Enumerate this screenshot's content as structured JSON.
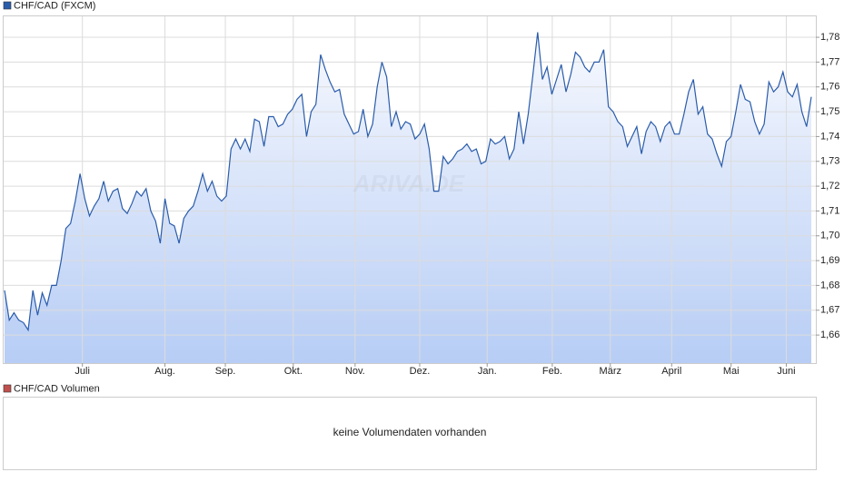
{
  "chart_data": {
    "type": "area",
    "title": "CHF/CAD (FXCM)",
    "watermark": "ARIVA.DE",
    "color": "#2a5caa",
    "values": [
      1.678,
      1.666,
      1.669,
      1.666,
      1.665,
      1.662,
      1.678,
      1.668,
      1.677,
      1.672,
      1.68,
      1.68,
      1.69,
      1.703,
      1.705,
      1.714,
      1.725,
      1.715,
      1.708,
      1.712,
      1.715,
      1.722,
      1.714,
      1.718,
      1.719,
      1.711,
      1.709,
      1.713,
      1.718,
      1.716,
      1.719,
      1.71,
      1.706,
      1.697,
      1.715,
      1.705,
      1.704,
      1.697,
      1.707,
      1.71,
      1.712,
      1.718,
      1.725,
      1.718,
      1.722,
      1.716,
      1.714,
      1.716,
      1.735,
      1.739,
      1.735,
      1.739,
      1.734,
      1.747,
      1.746,
      1.736,
      1.748,
      1.748,
      1.744,
      1.745,
      1.749,
      1.751,
      1.755,
      1.757,
      1.74,
      1.75,
      1.753,
      1.773,
      1.767,
      1.762,
      1.758,
      1.759,
      1.749,
      1.745,
      1.741,
      1.742,
      1.751,
      1.74,
      1.745,
      1.76,
      1.77,
      1.764,
      1.744,
      1.75,
      1.743,
      1.746,
      1.745,
      1.739,
      1.741,
      1.745,
      1.735,
      1.718,
      1.718,
      1.732,
      1.729,
      1.731,
      1.734,
      1.735,
      1.737,
      1.734,
      1.735,
      1.729,
      1.73,
      1.739,
      1.737,
      1.738,
      1.74,
      1.731,
      1.735,
      1.75,
      1.737,
      1.749,
      1.765,
      1.782,
      1.763,
      1.768,
      1.757,
      1.763,
      1.769,
      1.758,
      1.765,
      1.774,
      1.772,
      1.768,
      1.766,
      1.77,
      1.77,
      1.775,
      1.752,
      1.75,
      1.746,
      1.744,
      1.736,
      1.74,
      1.744,
      1.733,
      1.742,
      1.746,
      1.744,
      1.738,
      1.744,
      1.746,
      1.741,
      1.741,
      1.749,
      1.758,
      1.763,
      1.749,
      1.752,
      1.741,
      1.739,
      1.733,
      1.728,
      1.738,
      1.74,
      1.75,
      1.761,
      1.755,
      1.754,
      1.746,
      1.741,
      1.745,
      1.762,
      1.758,
      1.76,
      1.766,
      1.758,
      1.756,
      1.761,
      1.75,
      1.744,
      1.756
    ],
    "xlim": [
      0,
      171
    ],
    "xticks": [
      {
        "value": 16.5,
        "label": "Juli"
      },
      {
        "value": 34,
        "label": "Aug."
      },
      {
        "value": 46.8,
        "label": "Sep."
      },
      {
        "value": 61.2,
        "label": "Okt."
      },
      {
        "value": 74.3,
        "label": "Nov."
      },
      {
        "value": 88,
        "label": "Dez."
      },
      {
        "value": 102.3,
        "label": "Jan."
      },
      {
        "value": 116.1,
        "label": "Feb."
      },
      {
        "value": 128.4,
        "label": "März"
      },
      {
        "value": 141.4,
        "label": "April"
      },
      {
        "value": 154,
        "label": "Mai"
      },
      {
        "value": 165.7,
        "label": "Juni"
      }
    ],
    "ylim": [
      1.6487,
      1.7888
    ],
    "yticks": [
      {
        "value": 1.66,
        "label": "1,66"
      },
      {
        "value": 1.67,
        "label": "1,67"
      },
      {
        "value": 1.68,
        "label": "1,68"
      },
      {
        "value": 1.69,
        "label": "1,69"
      },
      {
        "value": 1.7,
        "label": "1,70"
      },
      {
        "value": 1.71,
        "label": "1,71"
      },
      {
        "value": 1.72,
        "label": "1,72"
      },
      {
        "value": 1.73,
        "label": "1,73"
      },
      {
        "value": 1.74,
        "label": "1,74"
      },
      {
        "value": 1.75,
        "label": "1,75"
      },
      {
        "value": 1.76,
        "label": "1,76"
      },
      {
        "value": 1.77,
        "label": "1,77"
      },
      {
        "value": 1.78,
        "label": "1,78"
      }
    ],
    "grid": true,
    "volume": {
      "title": "CHF/CAD Volumen",
      "message": "keine Volumendaten vorhanden",
      "color": "#c0504d"
    }
  }
}
